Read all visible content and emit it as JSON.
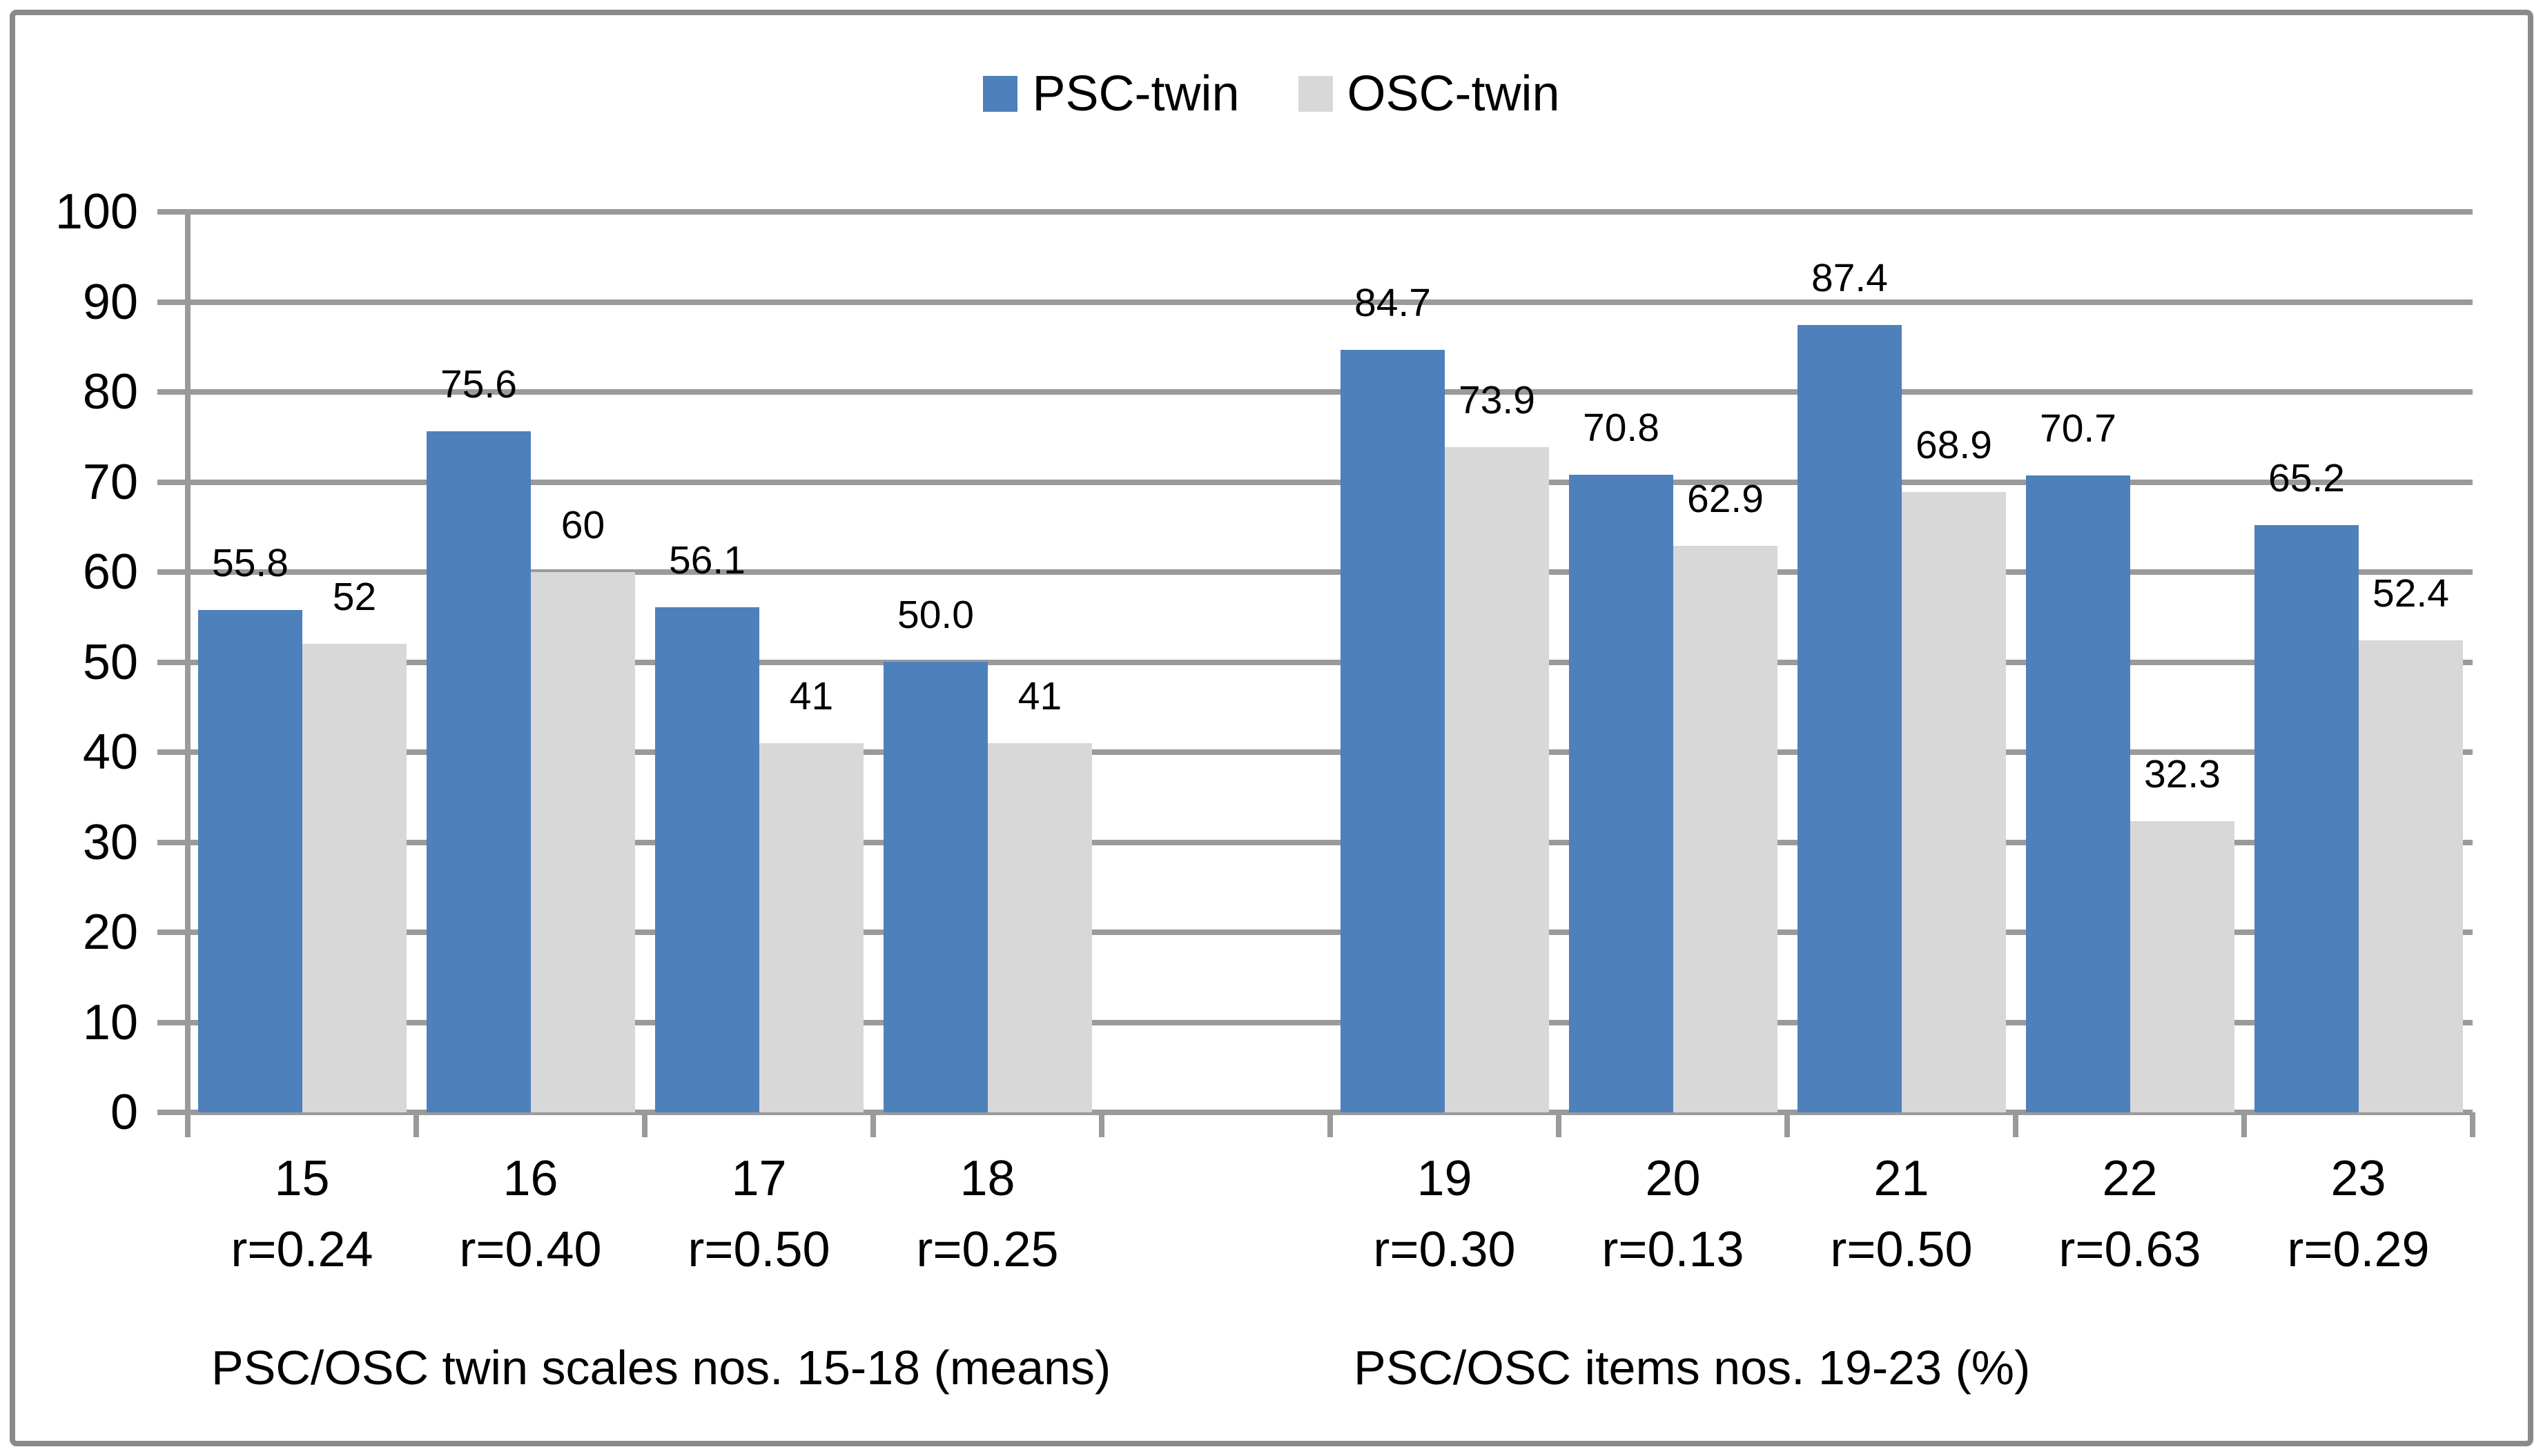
{
  "chart_data": {
    "type": "bar",
    "title": "",
    "legend_position": "top-center",
    "grid": true,
    "gridline_color": "#9a9a9a",
    "ylim": [
      0,
      100
    ],
    "ytick_step": 10,
    "ytick_labels": [
      "0",
      "10",
      "20",
      "30",
      "40",
      "50",
      "60",
      "70",
      "80",
      "90",
      "100"
    ],
    "series": [
      {
        "name": "PSC-twin",
        "color": "#4e80bc"
      },
      {
        "name": "OSC-twin",
        "color": "#d8d8d8"
      }
    ],
    "groups": [
      {
        "label": "PSC/OSC twin scales nos. 15-18 (means)",
        "categories": [
          {
            "name": "15",
            "r_label": "r=0.24",
            "values": [
              55.8,
              52
            ],
            "value_labels": [
              "55.8",
              "52"
            ]
          },
          {
            "name": "16",
            "r_label": "r=0.40",
            "values": [
              75.6,
              60
            ],
            "value_labels": [
              "75.6",
              "60"
            ]
          },
          {
            "name": "17",
            "r_label": "r=0.50",
            "values": [
              56.1,
              41
            ],
            "value_labels": [
              "56.1",
              "41"
            ]
          },
          {
            "name": "18",
            "r_label": "r=0.25",
            "values": [
              50.0,
              41
            ],
            "value_labels": [
              "50.0",
              "41"
            ]
          }
        ]
      },
      {
        "label": "PSC/OSC items nos. 19-23 (%)",
        "categories": [
          {
            "name": "19",
            "r_label": "r=0.30",
            "values": [
              84.7,
              73.9
            ],
            "value_labels": [
              "84.7",
              "73.9"
            ]
          },
          {
            "name": "20",
            "r_label": "r=0.13",
            "values": [
              70.8,
              62.9
            ],
            "value_labels": [
              "70.8",
              "62.9"
            ]
          },
          {
            "name": "21",
            "r_label": "r=0.50",
            "values": [
              87.4,
              68.9
            ],
            "value_labels": [
              "87.4",
              "68.9"
            ]
          },
          {
            "name": "22",
            "r_label": "r=0.63",
            "values": [
              70.7,
              32.3
            ],
            "value_labels": [
              "70.7",
              "32.3"
            ]
          },
          {
            "name": "23",
            "r_label": "r=0.29",
            "values": [
              65.2,
              52.4
            ],
            "value_labels": [
              "65.2",
              "52.4"
            ]
          }
        ]
      }
    ]
  }
}
